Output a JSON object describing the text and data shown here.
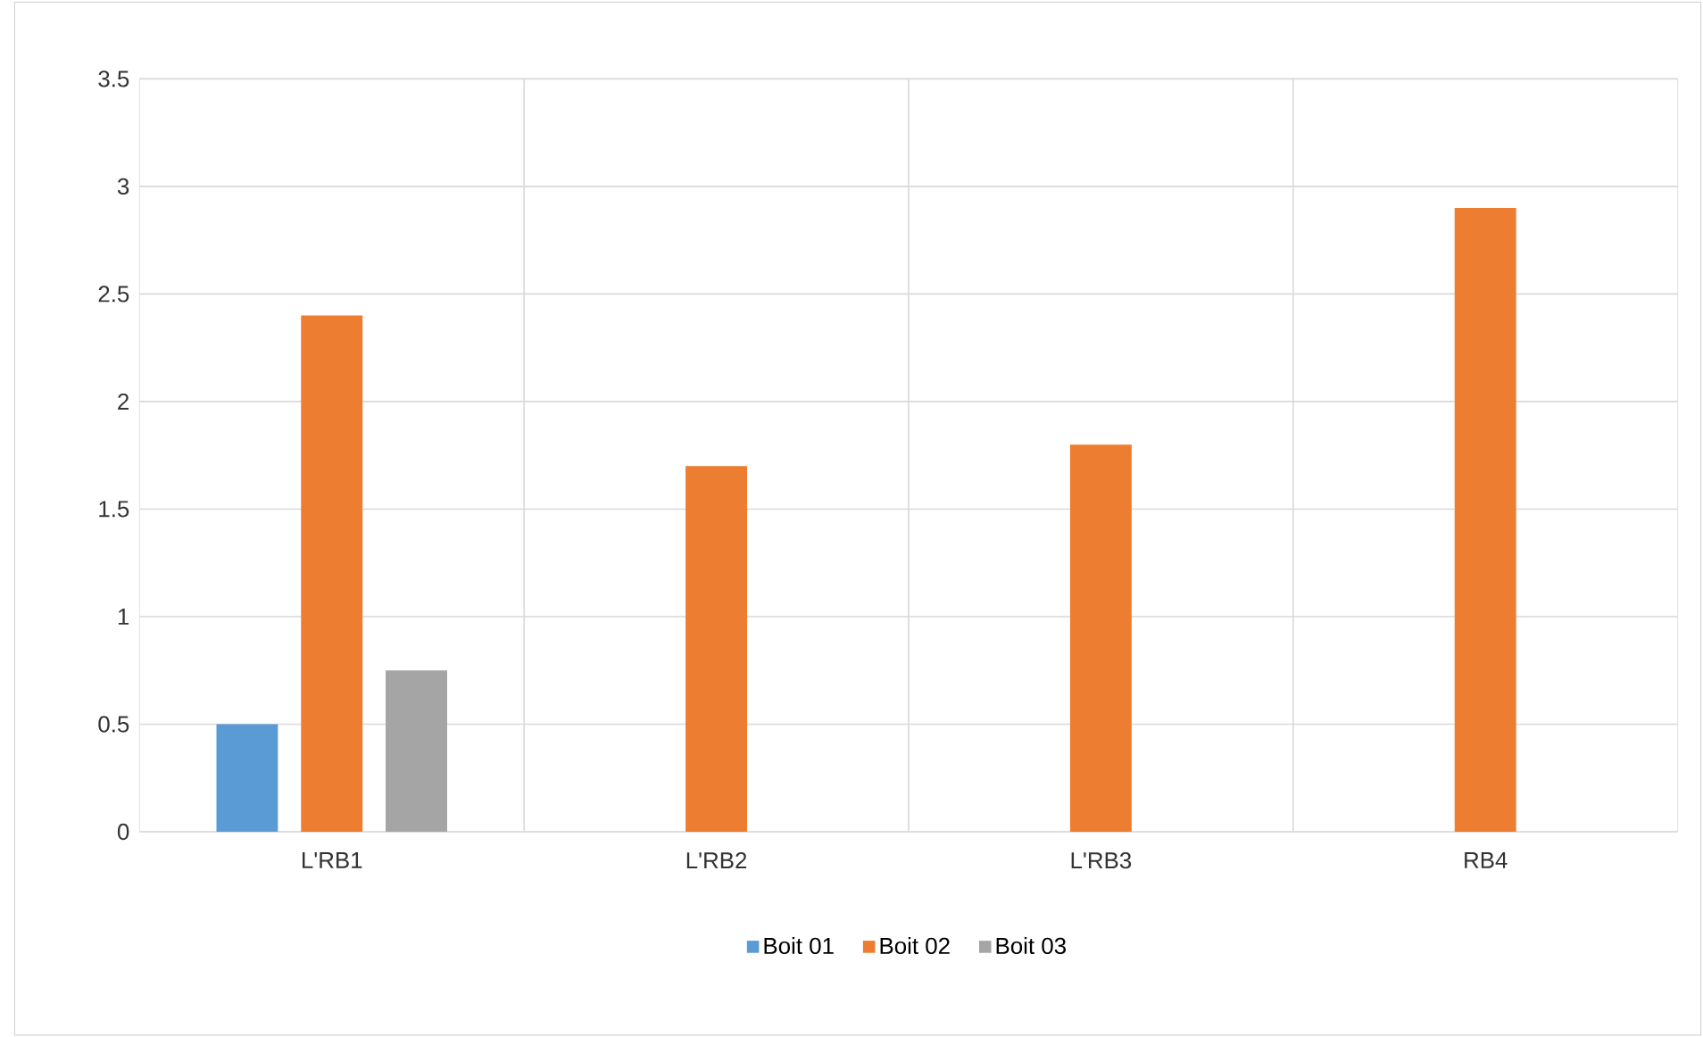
{
  "chart_data": {
    "type": "bar",
    "categories": [
      "L'RB1",
      "L'RB2",
      "L'RB3",
      "RB4"
    ],
    "series": [
      {
        "name": "Boit 01",
        "color": "#5b9bd5",
        "values": [
          0.5,
          null,
          null,
          null
        ]
      },
      {
        "name": "Boit 02",
        "color": "#ed7d31",
        "values": [
          2.4,
          1.7,
          1.8,
          2.9
        ]
      },
      {
        "name": "Boit 03",
        "color": "#a5a5a5",
        "values": [
          0.75,
          null,
          null,
          null
        ]
      }
    ],
    "ylim": [
      0,
      3.5
    ],
    "yticks": [
      0,
      0.5,
      1,
      1.5,
      2,
      2.5,
      3,
      3.5
    ],
    "grid": true,
    "legend": "bottom"
  }
}
